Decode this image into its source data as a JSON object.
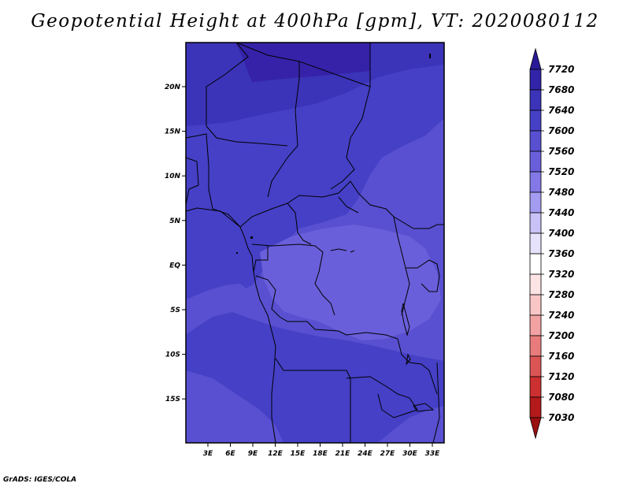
{
  "title": "Geopotential Height at 400hPa [gpm], VT: 2020080112",
  "credit": "GrADS: IGES/COLA",
  "lon_ticks": [
    "3E",
    "6E",
    "9E",
    "12E",
    "15E",
    "18E",
    "21E",
    "24E",
    "27E",
    "30E",
    "33E"
  ],
  "lat_ticks": [
    "20N",
    "15N",
    "10N",
    "5N",
    "EQ",
    "5S",
    "10S",
    "15S"
  ],
  "colorbar": {
    "labels": [
      "7720",
      "7680",
      "7640",
      "7600",
      "7560",
      "7520",
      "7480",
      "7440",
      "7400",
      "7360",
      "7320",
      "7280",
      "7240",
      "7200",
      "7160",
      "7120",
      "7080",
      "7030"
    ],
    "colors": [
      "#2a1a98",
      "#3224a8",
      "#3b33b8",
      "#4540c6",
      "#5850d0",
      "#6a5fda",
      "#8378e6",
      "#a49cf0",
      "#c8c2f6",
      "#e6e2fb",
      "#ffffff",
      "#fde4e4",
      "#f9c6c6",
      "#f2a2a2",
      "#e87c7c",
      "#dc5555",
      "#cc3030",
      "#b41a1a",
      "#9a1010"
    ],
    "top_arrow_color": "#2a1a98",
    "bottom_arrow_color": "#9a1010"
  },
  "fill_colors": {
    "c7680": "#3522a8",
    "c7640": "#3b33b8",
    "c7600": "#4540c6",
    "c7560": "#5850d0",
    "c7520": "#6a5fda",
    "c7480": "#8378e6"
  }
}
